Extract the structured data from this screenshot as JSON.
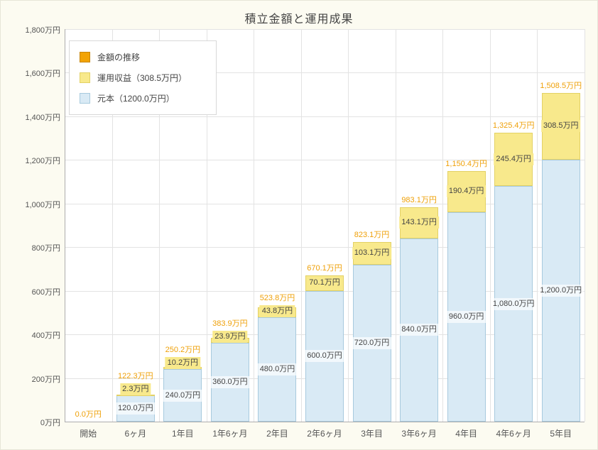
{
  "page": {
    "background": "#fcfbf1",
    "plot_background": "#ffffff"
  },
  "chart": {
    "title": "積立金額と運用成果",
    "colors": {
      "total_label": "#efa008",
      "gain_fill": "#f8e98c",
      "gain_border": "#e3d165",
      "principal_fill": "#d9eaf5",
      "principal_border": "#a8cade",
      "trend_fill": "#f2a305",
      "trend_border": "#c78504",
      "grid": "#e3e3e3",
      "axis": "#adadad",
      "segment_text": "#444444",
      "tick_text": "#555555"
    },
    "legend": {
      "items": [
        {
          "label": "金額の推移",
          "swatch": "trend"
        },
        {
          "label": "運用収益（308.5万円）",
          "swatch": "gain"
        },
        {
          "label": "元本（1200.0万円）",
          "swatch": "principal"
        }
      ]
    }
  },
  "chart_data": {
    "type": "bar",
    "stacked": true,
    "title": "積立金額と運用成果",
    "categories": [
      "開始",
      "6ヶ月",
      "1年目",
      "1年6ヶ月",
      "2年目",
      "2年6ヶ月",
      "3年目",
      "3年6ヶ月",
      "4年目",
      "4年6ヶ月",
      "5年目"
    ],
    "series": [
      {
        "name": "元本",
        "values": [
          0,
          120.0,
          240.0,
          360.0,
          480.0,
          600.0,
          720.0,
          840.0,
          960.0,
          1080.0,
          1200.0
        ],
        "labels": [
          "",
          "120.0万円",
          "240.0万円",
          "360.0万円",
          "480.0万円",
          "600.0万円",
          "720.0万円",
          "840.0万円",
          "960.0万円",
          "1,080.0万円",
          "1,200.0万円"
        ]
      },
      {
        "name": "運用収益",
        "values": [
          0,
          2.3,
          10.2,
          23.9,
          43.8,
          70.1,
          103.1,
          143.1,
          190.4,
          245.4,
          308.5
        ],
        "labels": [
          "",
          "2.3万円",
          "10.2万円",
          "23.9万円",
          "43.8万円",
          "70.1万円",
          "103.1万円",
          "143.1万円",
          "190.4万円",
          "245.4万円",
          "308.5万円"
        ]
      }
    ],
    "totals": {
      "values": [
        0.0,
        122.3,
        250.2,
        383.9,
        523.8,
        670.1,
        823.1,
        983.1,
        1150.4,
        1325.4,
        1508.5
      ],
      "labels": [
        "0.0万円",
        "122.3万円",
        "250.2万円",
        "383.9万円",
        "523.8万円",
        "670.1万円",
        "823.1万円",
        "983.1万円",
        "1,150.4万円",
        "1,325.4万円",
        "1,508.5万円"
      ]
    },
    "ylim": [
      0,
      1800
    ],
    "yticks": {
      "values": [
        0,
        200,
        400,
        600,
        800,
        1000,
        1200,
        1400,
        1600,
        1800
      ],
      "labels": [
        "0万円",
        "200万円",
        "400万円",
        "600万円",
        "800万円",
        "1,000万円",
        "1,200万円",
        "1,400万円",
        "1,600万円",
        "1,800万円"
      ]
    },
    "grid": true,
    "legend_position": "top-left"
  }
}
